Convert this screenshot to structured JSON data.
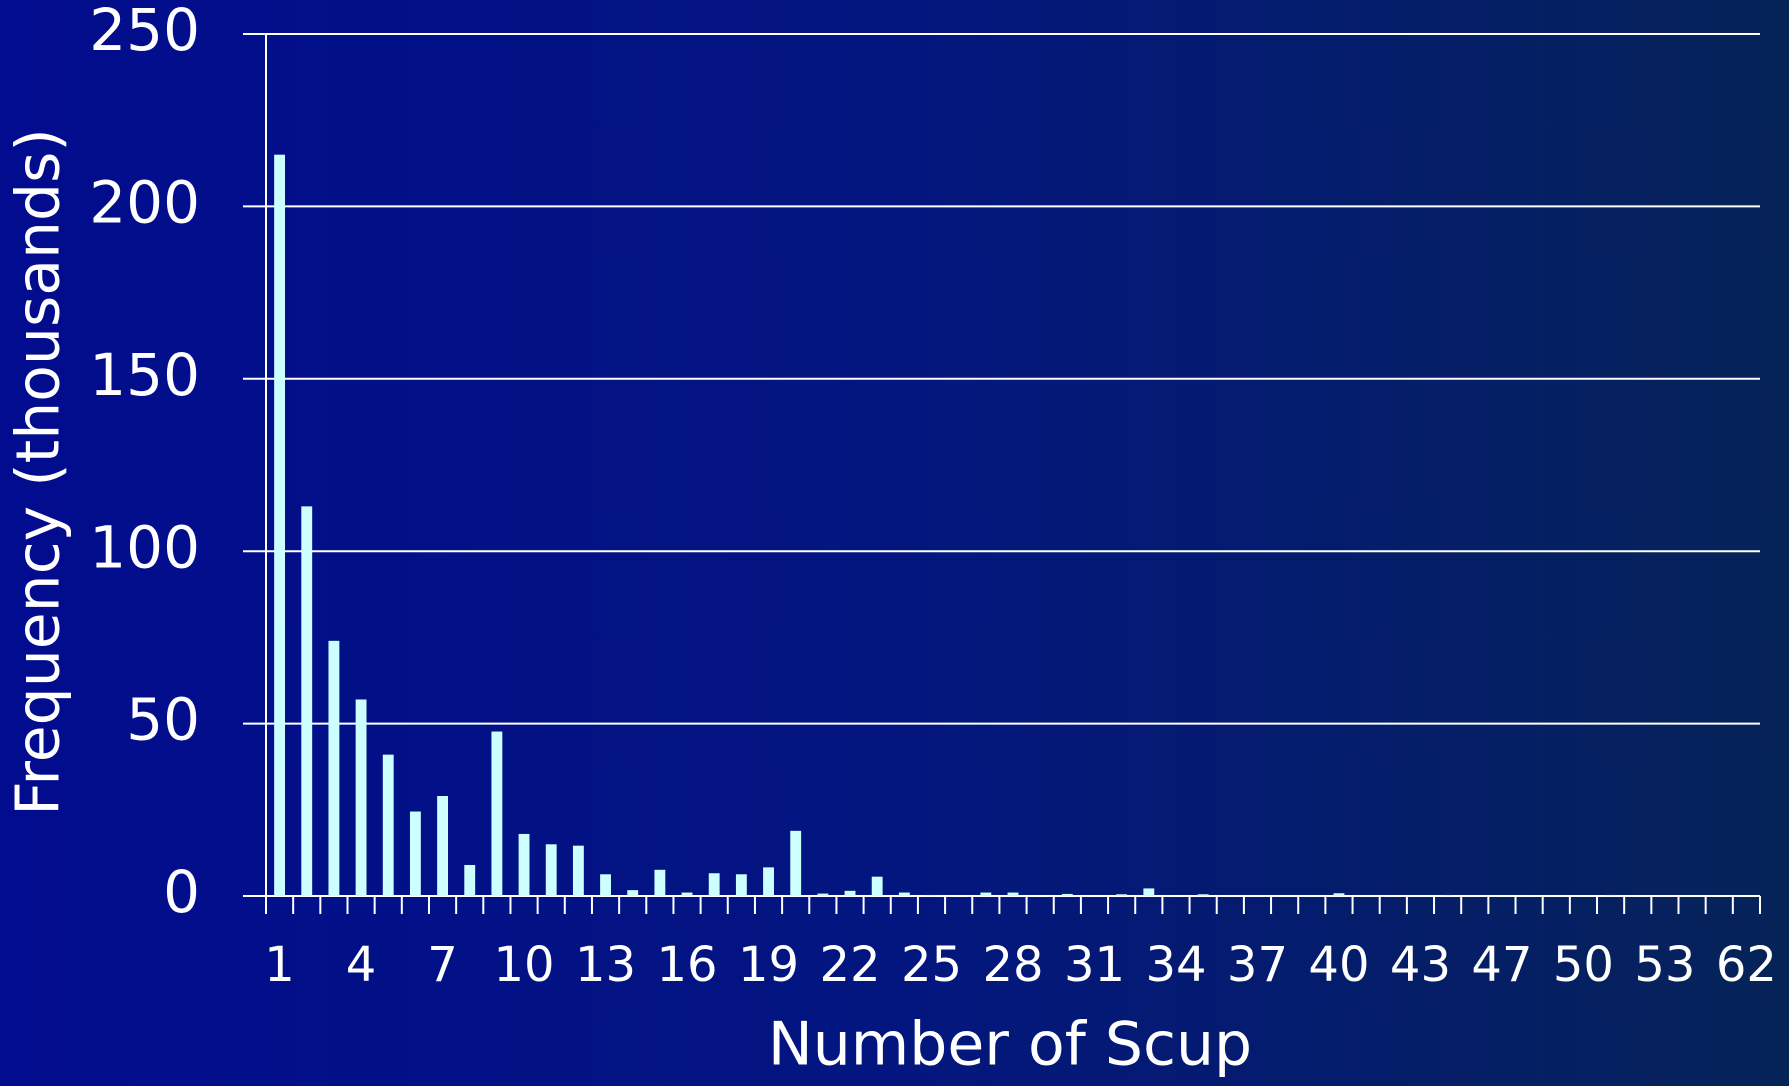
{
  "chart_data": {
    "type": "bar",
    "xlabel": "Number of Scup",
    "ylabel": "Frequency (thousands)",
    "categories": [
      "1",
      null,
      null,
      "4",
      null,
      null,
      "7",
      null,
      null,
      "10",
      null,
      null,
      "13",
      null,
      null,
      "16",
      null,
      null,
      "19",
      null,
      null,
      "22",
      null,
      null,
      "25",
      null,
      null,
      "28",
      null,
      null,
      "31",
      null,
      null,
      "34",
      null,
      null,
      "37",
      null,
      null,
      "40",
      null,
      null,
      "43",
      null,
      null,
      "47",
      null,
      null,
      "50",
      null,
      null,
      "53",
      null,
      null,
      "62"
    ],
    "values": [
      215,
      113,
      74,
      57,
      41,
      24.5,
      29,
      9,
      47.7,
      18,
      15,
      14.6,
      6.3,
      1.7,
      7.6,
      1,
      6.6,
      6.3,
      8.3,
      18.9,
      0.7,
      1.5,
      5.6,
      1,
      0.3,
      0,
      1,
      1,
      0,
      0.6,
      0,
      0.5,
      2.2,
      0,
      0.5,
      0,
      0,
      0,
      0,
      0.8,
      0,
      0,
      0,
      0.3,
      0,
      0,
      0,
      0,
      0,
      0.3,
      0,
      0,
      0,
      0,
      0
    ],
    "color": "#ccffff",
    "ylim": [
      0,
      250
    ],
    "yticks": [
      0,
      50,
      100,
      150,
      200,
      250
    ],
    "grid": true
  }
}
